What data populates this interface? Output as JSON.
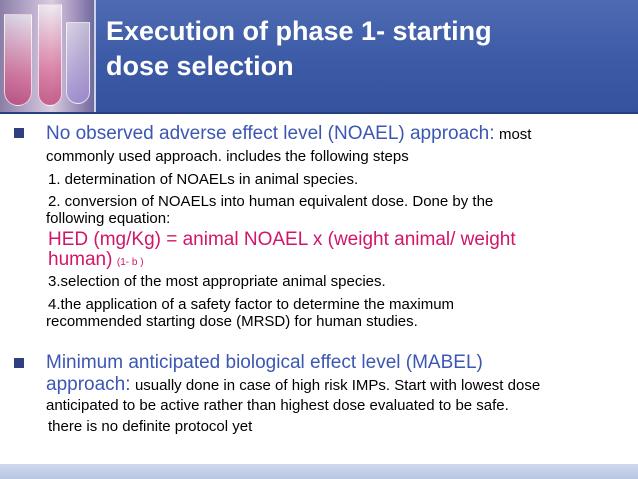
{
  "slide": {
    "title_line1": "Execution of phase 1- starting",
    "title_line2": "dose selection",
    "bullet1": {
      "heading": "No observed adverse effect level (NOAEL) approach:",
      "heading_tail": "most",
      "line2": "commonly used approach. includes the following steps",
      "step1": "1. determination of NOAELs in animal species.",
      "step2_line1": "2. conversion of NOAELs into human equivalent dose. Done by the",
      "step2_line2": "following equation:",
      "formula_line1": "HED (mg/Kg) = animal NOAEL x  (weight animal/ weight",
      "formula_line2": "human)",
      "formula_ref": "(1- b )",
      "step3": "3.selection of the most appropriate animal species.",
      "step4_line1": "4.the application of a safety factor to determine the maximum",
      "step4_line2": "recommended starting dose (MRSD) for human studies."
    },
    "bullet2": {
      "heading_line1": "Minimum anticipated biological effect level (MABEL)",
      "heading_line2": "approach:",
      "heading_tail": "usually done in case of high risk IMPs. Start with lowest dose",
      "line3": "anticipated to be active rather than highest dose evaluated to be safe.",
      "line4": "there is no definite protocol yet"
    }
  },
  "colors": {
    "header_bg": "#3c5aa6",
    "title_text": "#ffffff",
    "accent_blue": "#3b57b3",
    "formula_red": "#d1166a",
    "bullet_marker": "#2f3f82"
  }
}
